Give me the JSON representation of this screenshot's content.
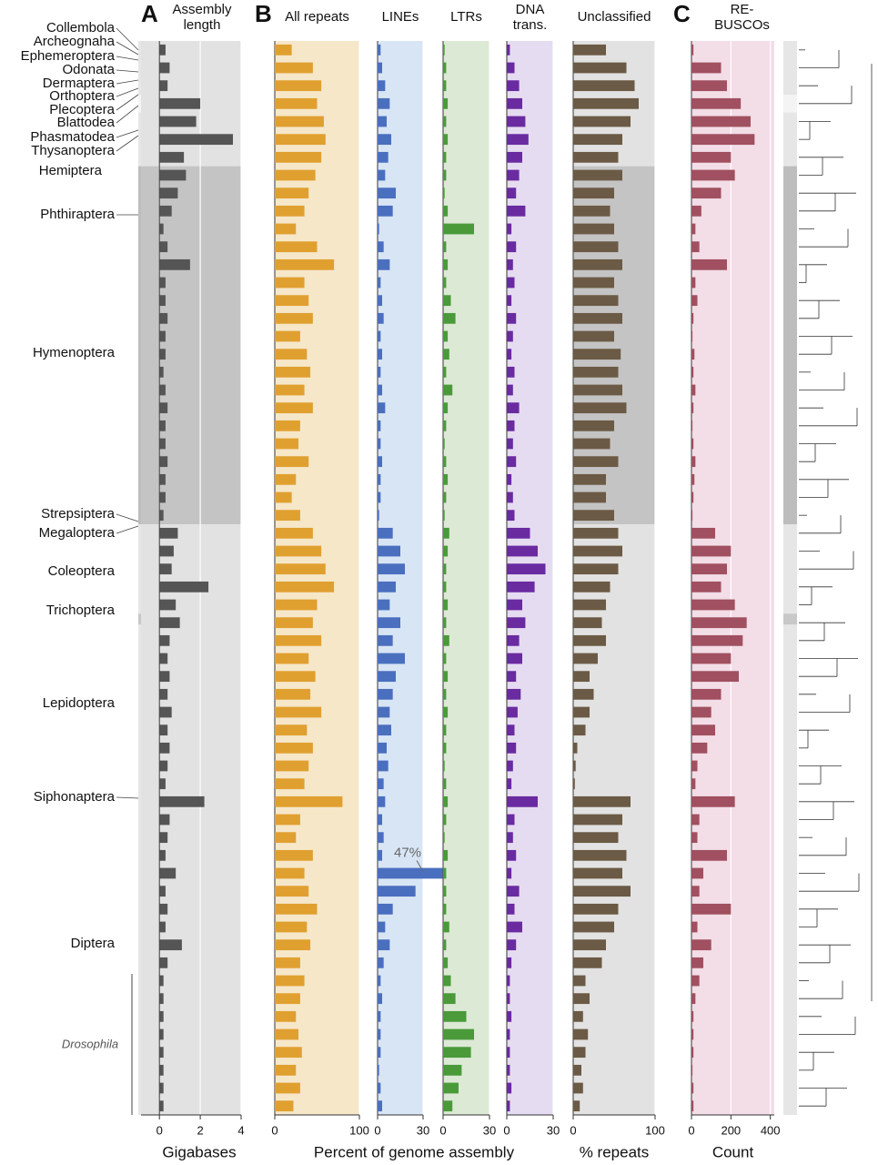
{
  "orders": [
    "Collembola",
    "Archeognaha",
    "Ephemeroptera",
    "Odonata",
    "Dermaptera",
    "Orthoptera",
    "Plecoptera",
    "Blattodea",
    "Phasmatodea",
    "Thysanoptera",
    "Hemiptera",
    "Phthiraptera",
    "Hymenoptera",
    "Strepsiptera",
    "Megaloptera",
    "Coleoptera",
    "Trichoptera",
    "Lepidoptera",
    "Siphonaptera",
    "Diptera"
  ],
  "genus_label": "Drosophila",
  "chart_data": [
    {
      "type": "bar",
      "panel_label": "A",
      "title": "Assembly length",
      "xlabel": "Gigabases",
      "color": "#555555",
      "background": "#e2e2e2",
      "xlim": [
        -0.9,
        4
      ],
      "xticks": [
        0,
        2,
        4
      ],
      "values": [
        0.3,
        0.5,
        0.4,
        2.0,
        1.8,
        3.6,
        1.2,
        1.3,
        0.9,
        0.6,
        0.2,
        0.4,
        1.5,
        0.3,
        0.3,
        0.4,
        0.3,
        0.3,
        0.2,
        0.3,
        0.4,
        0.3,
        0.3,
        0.4,
        0.3,
        0.3,
        0.2,
        0.9,
        0.7,
        0.6,
        2.4,
        0.8,
        1.0,
        0.5,
        0.4,
        0.5,
        0.4,
        0.6,
        0.4,
        0.5,
        0.4,
        0.3,
        2.2,
        0.5,
        0.4,
        0.3,
        0.8,
        0.3,
        0.4,
        0.3,
        1.1,
        0.4,
        0.2,
        0.2,
        0.2,
        0.2,
        0.2,
        0.2,
        0.2,
        0.2
      ]
    },
    {
      "type": "bar",
      "panel_label": "B",
      "title": "All repeats",
      "xlabel": "Percent of genome assembly",
      "color": "#e0a030",
      "background": "#f6e7c9",
      "xlim": [
        0,
        100
      ],
      "xticks": [
        0,
        100
      ],
      "values": [
        20,
        45,
        55,
        50,
        58,
        60,
        55,
        48,
        40,
        35,
        25,
        50,
        70,
        35,
        40,
        45,
        30,
        38,
        42,
        35,
        45,
        30,
        28,
        40,
        25,
        20,
        30,
        45,
        55,
        60,
        70,
        50,
        45,
        55,
        40,
        48,
        42,
        55,
        38,
        45,
        40,
        35,
        80,
        30,
        25,
        45,
        35,
        40,
        50,
        38,
        42,
        30,
        35,
        30,
        25,
        28,
        32,
        25,
        30,
        22
      ]
    },
    {
      "type": "bar",
      "title": "LINEs",
      "color": "#4a6fbf",
      "background": "#d8e5f5",
      "xlim": [
        0,
        30
      ],
      "xticks": [
        0,
        30
      ],
      "annotation": "47%",
      "values": [
        2,
        3,
        5,
        8,
        6,
        9,
        7,
        5,
        12,
        10,
        1,
        4,
        8,
        2,
        3,
        4,
        2,
        3,
        2,
        3,
        5,
        2,
        2,
        3,
        2,
        2,
        1,
        10,
        15,
        18,
        12,
        8,
        15,
        10,
        18,
        12,
        10,
        8,
        9,
        6,
        7,
        4,
        5,
        3,
        4,
        3,
        47,
        25,
        10,
        5,
        8,
        4,
        2,
        3,
        2,
        2,
        2,
        1,
        2,
        3
      ]
    },
    {
      "type": "bar",
      "title": "LTRs",
      "color": "#4a9a3a",
      "background": "#dce9d5",
      "xlim": [
        0,
        30
      ],
      "xticks": [
        0,
        30
      ],
      "values": [
        1,
        2,
        2,
        3,
        2,
        3,
        2,
        2,
        1,
        3,
        20,
        2,
        3,
        2,
        5,
        8,
        3,
        4,
        2,
        6,
        3,
        2,
        1,
        2,
        3,
        2,
        1,
        4,
        3,
        2,
        2,
        3,
        2,
        4,
        2,
        3,
        2,
        3,
        2,
        2,
        1,
        2,
        3,
        2,
        1,
        3,
        2,
        2,
        2,
        4,
        2,
        3,
        5,
        8,
        15,
        20,
        18,
        12,
        10,
        6
      ]
    },
    {
      "type": "bar",
      "title": "DNA trans.",
      "color": "#6a2aa0",
      "background": "#e5dcf1",
      "xlim": [
        0,
        30
      ],
      "xticks": [
        0,
        30
      ],
      "values": [
        2,
        5,
        8,
        10,
        12,
        14,
        10,
        8,
        6,
        12,
        3,
        6,
        4,
        5,
        3,
        6,
        4,
        3,
        5,
        4,
        8,
        5,
        4,
        6,
        3,
        4,
        5,
        15,
        20,
        25,
        18,
        10,
        12,
        8,
        10,
        6,
        9,
        7,
        5,
        6,
        4,
        3,
        20,
        5,
        4,
        6,
        3,
        8,
        5,
        10,
        6,
        3,
        2,
        2,
        3,
        2,
        2,
        2,
        3,
        2
      ]
    },
    {
      "type": "bar",
      "title": "Unclassified",
      "xlabel": "% repeats",
      "color": "#6b5a45",
      "background": "#e2e2e2",
      "xlim": [
        0,
        100
      ],
      "xticks": [
        0,
        100
      ],
      "values": [
        40,
        65,
        75,
        80,
        70,
        60,
        55,
        60,
        50,
        45,
        50,
        55,
        60,
        50,
        55,
        60,
        50,
        58,
        55,
        60,
        65,
        50,
        45,
        55,
        40,
        40,
        50,
        55,
        60,
        55,
        45,
        40,
        35,
        40,
        30,
        20,
        25,
        20,
        15,
        5,
        3,
        2,
        70,
        60,
        55,
        65,
        60,
        70,
        55,
        50,
        40,
        35,
        15,
        20,
        12,
        18,
        15,
        10,
        12,
        8
      ]
    },
    {
      "type": "bar",
      "panel_label": "C",
      "title": "RE-BUSCOs",
      "xlabel": "Count",
      "color": "#a05060",
      "background": "#f3dde7",
      "xlim": [
        0,
        420
      ],
      "xticks": [
        0,
        200,
        400
      ],
      "values": [
        10,
        150,
        180,
        250,
        300,
        320,
        200,
        220,
        150,
        50,
        20,
        40,
        180,
        20,
        30,
        10,
        5,
        15,
        10,
        20,
        10,
        5,
        10,
        20,
        15,
        10,
        5,
        120,
        200,
        180,
        150,
        220,
        280,
        260,
        200,
        240,
        150,
        100,
        120,
        80,
        30,
        20,
        220,
        40,
        30,
        180,
        60,
        40,
        200,
        30,
        100,
        60,
        40,
        20,
        10,
        10,
        10,
        5,
        10,
        10
      ]
    }
  ]
}
